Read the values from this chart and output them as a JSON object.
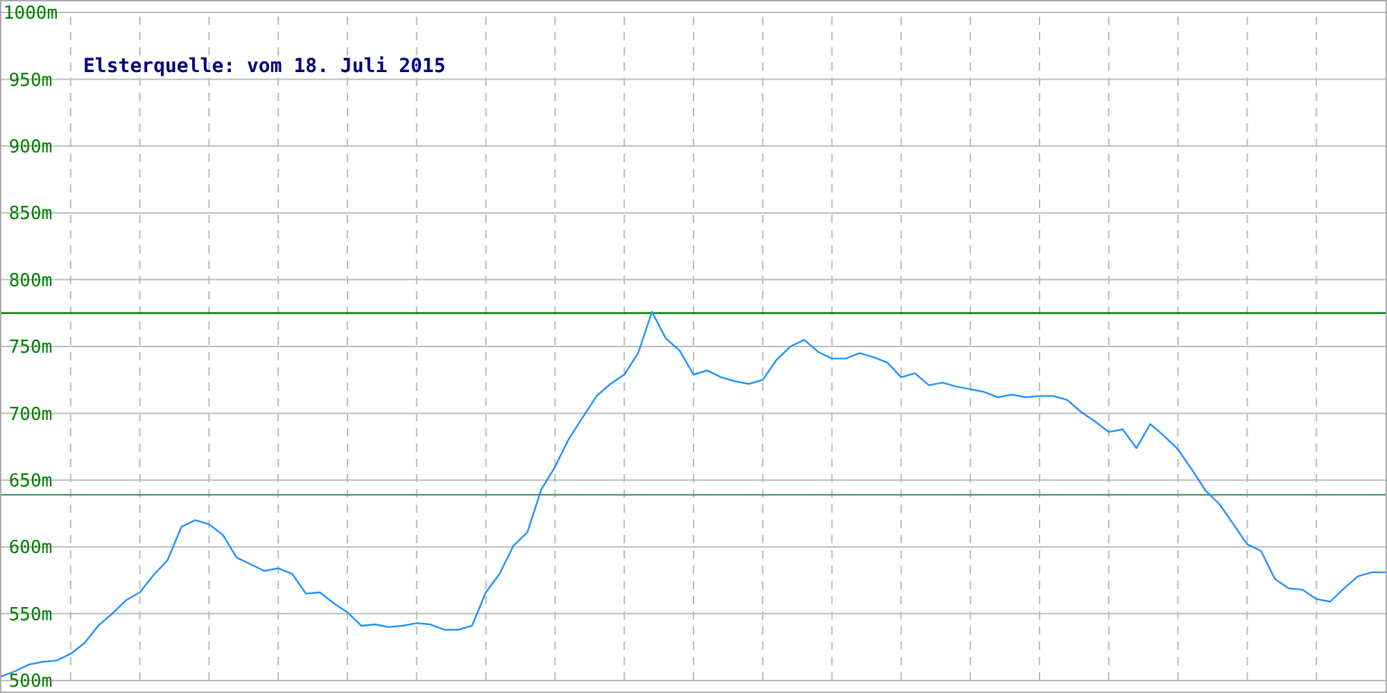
{
  "chart_data": {
    "type": "line",
    "title": "Elsterquelle: vom 18. Juli 2015",
    "categories": [
      null,
      null,
      null,
      null,
      null,
      null,
      null,
      null,
      null,
      null,
      null,
      null,
      null,
      null,
      null,
      null,
      null,
      null,
      null,
      null,
      null,
      null,
      null,
      null,
      null,
      null,
      null,
      null,
      null,
      null,
      null,
      null,
      null,
      null,
      null,
      null,
      null,
      null,
      null,
      null,
      null,
      null,
      null,
      null,
      null,
      null,
      null,
      null,
      null,
      null,
      null,
      null,
      null,
      null,
      null,
      null,
      null,
      null,
      null,
      null,
      null,
      null,
      null,
      null,
      null,
      null,
      null,
      null,
      null,
      null,
      null,
      null,
      null,
      null,
      null,
      null,
      null,
      null,
      null,
      null,
      null,
      null,
      null,
      null,
      null,
      null,
      null,
      null,
      null,
      null,
      null,
      null,
      null,
      null,
      null,
      null,
      null,
      null,
      null,
      null,
      null
    ],
    "ylim": [
      500,
      1000
    ],
    "yticks": [
      {
        "value": 500,
        "label": "500m"
      },
      {
        "value": 550,
        "label": "550m"
      },
      {
        "value": 600,
        "label": "600m"
      },
      {
        "value": 650,
        "label": "650m"
      },
      {
        "value": 700,
        "label": "700m"
      },
      {
        "value": 750,
        "label": "750m"
      },
      {
        "value": 800,
        "label": "800m"
      },
      {
        "value": 850,
        "label": "850m"
      },
      {
        "value": 900,
        "label": "900m"
      },
      {
        "value": 950,
        "label": "950m"
      },
      {
        "value": 1000,
        "label": "1000m"
      }
    ],
    "tick_labels": "y",
    "grid": true,
    "marker": "none",
    "line_style": "solid",
    "ref_lines": [
      {
        "axis": "y",
        "value": 775,
        "color": "#008000"
      },
      {
        "axis": "y",
        "value": 639,
        "color": "#4c9e6e"
      }
    ],
    "series": [
      {
        "color": "#1e90ff",
        "values": [
          503,
          507,
          512,
          514,
          515,
          520,
          528,
          541,
          550,
          560,
          566,
          579,
          590,
          615,
          620,
          617,
          609,
          592,
          587,
          582,
          584,
          580,
          565,
          566,
          558,
          551,
          541,
          542,
          540,
          541,
          543,
          542,
          538,
          538,
          541,
          566,
          580,
          601,
          611,
          643,
          660,
          681,
          697,
          713,
          722,
          729,
          745,
          776,
          756,
          747,
          729,
          732,
          727,
          724,
          722,
          725,
          740,
          750,
          755,
          746,
          741,
          741,
          745,
          742,
          738,
          727,
          730,
          721,
          723,
          720,
          718,
          716,
          712,
          714,
          712,
          713,
          713,
          710,
          701,
          694,
          686,
          688,
          674,
          692,
          683,
          673,
          658,
          642,
          632,
          617,
          602,
          597,
          576,
          569,
          568,
          561,
          559,
          569,
          578,
          581,
          581
        ]
      }
    ]
  }
}
